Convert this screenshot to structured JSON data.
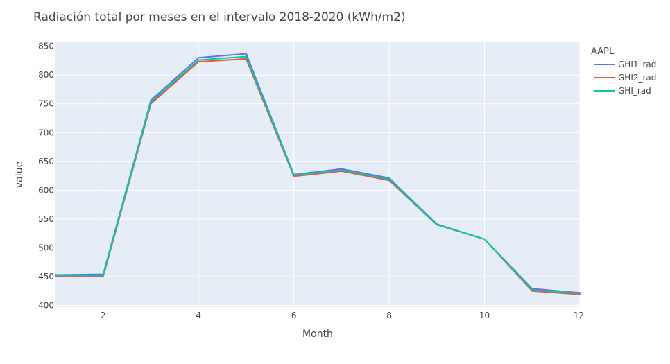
{
  "chart_data": {
    "type": "line",
    "title": "Radiación total por meses en el intervalo 2018-2020 (kWh/m2)",
    "xlabel": "Month",
    "ylabel": "value",
    "xlim": [
      1,
      12
    ],
    "ylim": [
      397,
      858
    ],
    "xticks": [
      2,
      4,
      6,
      8,
      10,
      12
    ],
    "yticks": [
      400,
      450,
      500,
      550,
      600,
      650,
      700,
      750,
      800,
      850
    ],
    "grid": true,
    "background_color": "#E5ECF6",
    "legend": {
      "title": "AAPL",
      "placement": "right"
    },
    "x": [
      1,
      2,
      3,
      4,
      5,
      6,
      7,
      8,
      9,
      10,
      11,
      12
    ],
    "series": [
      {
        "name": "GHI1_rad",
        "color": "#636EFA",
        "values": [
          453,
          454,
          756,
          830,
          837,
          627,
          637,
          621,
          541,
          515,
          429,
          422
        ]
      },
      {
        "name": "GHI2_rad",
        "color": "#EF553B",
        "values": [
          450,
          450,
          750,
          823,
          828,
          624,
          633,
          617,
          540,
          515,
          425,
          419
        ]
      },
      {
        "name": "GHI_rad",
        "color": "#00CC96",
        "values": [
          452,
          452,
          753,
          826,
          832,
          626,
          635,
          619,
          540,
          515,
          427,
          421
        ]
      }
    ]
  }
}
